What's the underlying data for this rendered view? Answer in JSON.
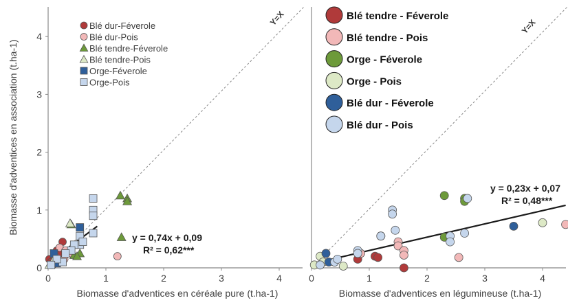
{
  "chart_data": [
    {
      "type": "scatter",
      "xlabel": "Biomasse d'adventices en céréale pure (t.ha-1)",
      "ylabel": "Biomasse d'adventices en association (t.ha-1)",
      "xlim": [
        0,
        4.5
      ],
      "ylim": [
        0,
        4.5
      ],
      "xticks": [
        "0",
        "1",
        "2",
        "3",
        "4"
      ],
      "yticks": [
        "0",
        "1",
        "2",
        "3",
        "4"
      ],
      "diag_label": "Y=X",
      "regression": {
        "slope": 0.74,
        "intercept": 0.09,
        "x_range": [
          0,
          0.85
        ]
      },
      "equation": "y = 0,74x + 0,09",
      "r2": "R² = 0,62***",
      "series": [
        {
          "name": "Blé dur-Féverole",
          "marker": "circle",
          "color": "#b03a3a",
          "points": [
            [
              0.02,
              0.15
            ],
            [
              0.05,
              0.1
            ],
            [
              0.1,
              0.2
            ],
            [
              0.15,
              0.3
            ],
            [
              0.25,
              0.45
            ],
            [
              0.2,
              0.25
            ],
            [
              0.08,
              0.05
            ]
          ]
        },
        {
          "name": "Blé dur-Pois",
          "marker": "circle",
          "color": "#f2b8b8",
          "points": [
            [
              0.05,
              0.05
            ],
            [
              0.12,
              0.2
            ],
            [
              0.2,
              0.35
            ],
            [
              0.3,
              0.3
            ],
            [
              0.4,
              0.25
            ],
            [
              1.2,
              0.2
            ],
            [
              0.28,
              0.15
            ]
          ]
        },
        {
          "name": "Blé tendre-Féverole",
          "marker": "triangle",
          "color": "#6d9a3a",
          "points": [
            [
              1.25,
              1.25
            ],
            [
              1.37,
              1.2
            ],
            [
              1.37,
              1.15
            ],
            [
              1.27,
              0.53
            ],
            [
              0.4,
              0.75
            ],
            [
              0.45,
              0.22
            ],
            [
              0.55,
              0.25
            ],
            [
              0.5,
              0.2
            ]
          ]
        },
        {
          "name": "Blé tendre-Pois",
          "marker": "triangle",
          "color": "#dde9c6",
          "points": [
            [
              0.38,
              0.77
            ],
            [
              0.02,
              0.05
            ],
            [
              0.1,
              0.15
            ],
            [
              0.2,
              0.1
            ]
          ]
        },
        {
          "name": "Orge-Féverole",
          "marker": "square",
          "color": "#2f5f9a",
          "points": [
            [
              0.1,
              0.25
            ],
            [
              0.55,
              0.7
            ],
            [
              0.15,
              0.08
            ]
          ]
        },
        {
          "name": "Orge-Pois",
          "marker": "square",
          "color": "#c5d6ec",
          "points": [
            [
              0.78,
              1.2
            ],
            [
              0.78,
              1.0
            ],
            [
              0.78,
              0.9
            ],
            [
              0.78,
              0.6
            ],
            [
              0.55,
              0.55
            ],
            [
              0.55,
              0.4
            ],
            [
              0.45,
              0.4
            ],
            [
              0.4,
              0.3
            ],
            [
              0.3,
              0.25
            ],
            [
              0.25,
              0.1
            ],
            [
              0.15,
              0.15
            ],
            [
              0.05,
              0.05
            ],
            [
              0.6,
              0.45
            ]
          ]
        }
      ]
    },
    {
      "type": "scatter",
      "xlabel": "Biomasse d'adventices en légumineuse (t.ha-1)",
      "xlim": [
        0,
        4.5
      ],
      "ylim": [
        0,
        4.5
      ],
      "xticks": [
        "0",
        "1",
        "2",
        "3",
        "4"
      ],
      "diag_label": "Y=X",
      "regression": {
        "slope": 0.23,
        "intercept": 0.07,
        "x_range": [
          0,
          4.4
        ]
      },
      "equation": "y = 0,23x + 0,07",
      "r2": "R² = 0,48***",
      "series": [
        {
          "name": "Blé tendre - Féverole",
          "marker": "circle",
          "color": "#b03a3a",
          "points": [
            [
              1.1,
              0.2
            ],
            [
              1.15,
              0.18
            ],
            [
              1.6,
              0.0
            ],
            [
              0.8,
              0.15
            ]
          ]
        },
        {
          "name": "Blé tendre - Pois",
          "marker": "circle",
          "color": "#f2b8b8",
          "points": [
            [
              4.4,
              0.75
            ],
            [
              2.55,
              0.18
            ],
            [
              1.5,
              0.45
            ],
            [
              1.5,
              0.38
            ],
            [
              1.6,
              0.3
            ],
            [
              1.6,
              0.22
            ],
            [
              0.85,
              0.25
            ]
          ]
        },
        {
          "name": "Orge - Féverole",
          "marker": "circle",
          "color": "#6d9a3a",
          "points": [
            [
              2.3,
              1.25
            ],
            [
              2.3,
              0.53
            ],
            [
              2.65,
              1.2
            ],
            [
              2.65,
              1.15
            ],
            [
              1.2,
              0.55
            ]
          ]
        },
        {
          "name": "Orge - Pois",
          "marker": "circle",
          "color": "#dde9c6",
          "points": [
            [
              4.0,
              0.78
            ],
            [
              0.05,
              0.05
            ],
            [
              0.15,
              0.2
            ],
            [
              0.55,
              0.03
            ],
            [
              0.2,
              0.1
            ]
          ]
        },
        {
          "name": "Blé dur - Féverole",
          "marker": "circle",
          "color": "#2f5f9a",
          "points": [
            [
              0.25,
              0.25
            ],
            [
              3.5,
              0.72
            ],
            [
              0.3,
              0.1
            ]
          ]
        },
        {
          "name": "Blé dur - Pois",
          "marker": "circle",
          "color": "#c5d6ec",
          "points": [
            [
              1.4,
              1.0
            ],
            [
              1.4,
              0.93
            ],
            [
              1.45,
              0.65
            ],
            [
              2.7,
              1.2
            ],
            [
              2.65,
              0.6
            ],
            [
              2.4,
              0.55
            ],
            [
              2.4,
              0.45
            ],
            [
              1.2,
              0.55
            ],
            [
              0.8,
              0.3
            ],
            [
              0.8,
              0.25
            ],
            [
              0.4,
              0.1
            ],
            [
              0.15,
              0.05
            ],
            [
              0.45,
              0.15
            ]
          ]
        }
      ]
    }
  ]
}
